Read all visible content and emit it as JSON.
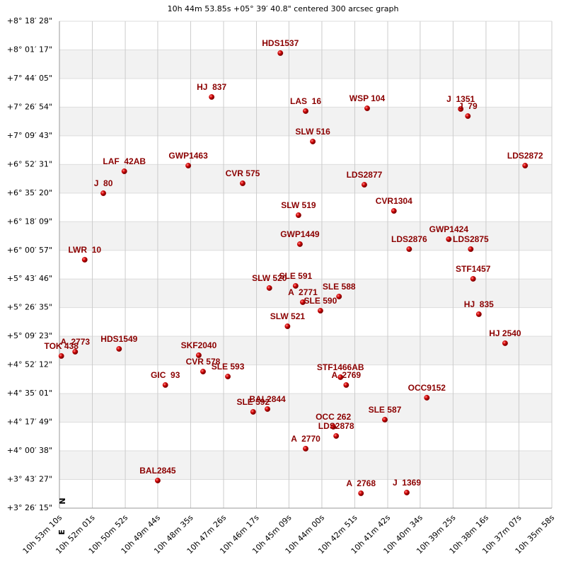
{
  "chart_data": {
    "type": "scatter",
    "title": "10h 44m 53.85s +05° 39′ 40.8\" centered 300 arcsec graph",
    "compass": {
      "north": "N",
      "east": "E"
    },
    "xlim": [
      3190,
      2158
    ],
    "ylim": [
      12375,
      29908
    ],
    "xticks": [
      {
        "value": 3190,
        "label": "10h 53m 10s"
      },
      {
        "value": 3121,
        "label": "10h 52m 01s"
      },
      {
        "value": 3052,
        "label": "10h 50m 52s"
      },
      {
        "value": 2984,
        "label": "10h 49m 44s"
      },
      {
        "value": 2915,
        "label": "10h 48m 35s"
      },
      {
        "value": 2846,
        "label": "10h 47m 26s"
      },
      {
        "value": 2777,
        "label": "10h 46m 17s"
      },
      {
        "value": 2709,
        "label": "10h 45m 09s"
      },
      {
        "value": 2640,
        "label": "10h 44m 00s"
      },
      {
        "value": 2571,
        "label": "10h 42m 51s"
      },
      {
        "value": 2502,
        "label": "10h 41m 42s"
      },
      {
        "value": 2434,
        "label": "10h 40m 34s"
      },
      {
        "value": 2365,
        "label": "10h 39m 25s"
      },
      {
        "value": 2296,
        "label": "10h 38m 16s"
      },
      {
        "value": 2227,
        "label": "10h 37m 07s"
      },
      {
        "value": 2158,
        "label": "10h 35m 58s"
      }
    ],
    "yticks": [
      {
        "value": 12375,
        "label": "+3° 26′ 15\""
      },
      {
        "value": 13407,
        "label": "+3° 43′ 27\""
      },
      {
        "value": 14438,
        "label": "+4° 00′ 38\""
      },
      {
        "value": 15469,
        "label": "+4° 17′ 49\""
      },
      {
        "value": 16501,
        "label": "+4° 35′ 01\""
      },
      {
        "value": 17532,
        "label": "+4° 52′ 12\""
      },
      {
        "value": 18563,
        "label": "+5° 09′ 23\""
      },
      {
        "value": 19595,
        "label": "+5° 26′ 35\""
      },
      {
        "value": 20626,
        "label": "+5° 43′ 46\""
      },
      {
        "value": 21657,
        "label": "+6° 00′ 57\""
      },
      {
        "value": 22689,
        "label": "+6° 18′ 09\""
      },
      {
        "value": 23720,
        "label": "+6° 35′ 20\""
      },
      {
        "value": 24751,
        "label": "+6° 52′ 31\""
      },
      {
        "value": 25783,
        "label": "+7° 09′ 43\""
      },
      {
        "value": 26814,
        "label": "+7° 26′ 54\""
      },
      {
        "value": 27845,
        "label": "+7° 44′ 05\""
      },
      {
        "value": 28877,
        "label": "+8° 01′ 17\""
      },
      {
        "value": 29908,
        "label": "+8° 18′ 28\""
      }
    ],
    "grid": true,
    "series": [
      {
        "color": "#cc0000",
        "label_color": "#8b0000",
        "labels": [
          "HDS1537",
          "HJ  837",
          "LAS  16",
          "WSP 104",
          "J  1351",
          "J  79",
          "SLW 516",
          "LAF  42AB",
          "GWP1463",
          "LDS2872",
          "J  80",
          "CVR 575",
          "LDS2877",
          "CVR1304",
          "SLW 519",
          "GWP1449",
          "GWP1424",
          "LDS2876",
          "LDS2875",
          "LWR  10",
          "STF1457",
          "SLW 520",
          "SLE 591",
          "A  2771",
          "SLE 588",
          "SLE 590",
          "HJ  835",
          "SLW 521",
          "HJ 2540",
          "A  2773",
          "TOK 438",
          "HDS1549",
          "SKF2040",
          "CVR 578",
          "SLE 593",
          "STF1466AB",
          "A  2769",
          "GIC  93",
          "OCC9152",
          "BAL2844",
          "SLE 592",
          "SLE 587",
          "OCC 262",
          "LDS2878",
          "A  2770",
          "BAL2845",
          "A  2768",
          "J  1369"
        ],
        "x": [
          2727,
          2871,
          2674,
          2545,
          2349,
          2334,
          2659,
          3054,
          2920,
          2214,
          3098,
          2806,
          2551,
          2489,
          2689,
          2686,
          2374,
          2457,
          2328,
          3137,
          2323,
          2750,
          2695,
          2680,
          2604,
          2643,
          2311,
          2712,
          2256,
          3157,
          3186,
          3065,
          2898,
          2889,
          2837,
          2601,
          2589,
          2968,
          2420,
          2754,
          2784,
          2508,
          2616,
          2610,
          2674,
          2984,
          2558,
          2462
        ],
        "values": [
          28761,
          27181,
          26672,
          26773,
          26748,
          26493,
          25576,
          24505,
          24709,
          24709,
          23715,
          24072,
          24021,
          23078,
          22925,
          21881,
          22059,
          21702,
          21702,
          21320,
          20632,
          20301,
          20377,
          19791,
          19995,
          19485,
          19358,
          18924,
          18313,
          18007,
          17854,
          18109,
          17880,
          17293,
          17115,
          17090,
          16809,
          16809,
          16351,
          15943,
          15841,
          15561,
          15306,
          14974,
          14516,
          13369,
          12910,
          12936
        ]
      }
    ]
  }
}
